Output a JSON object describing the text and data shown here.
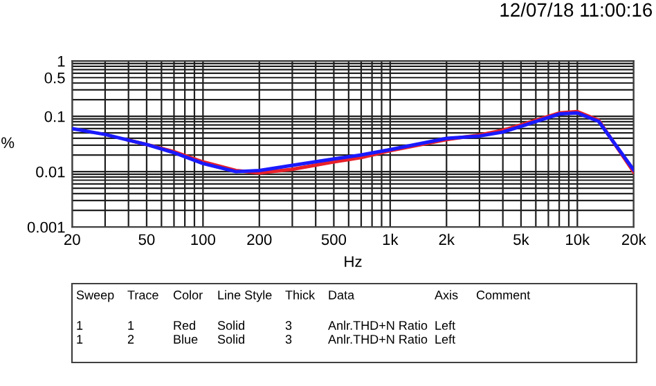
{
  "chart_data": {
    "type": "line",
    "xlabel": "Hz",
    "ylabel": "%",
    "log": "xy",
    "x": [
      20,
      30,
      40,
      50,
      70,
      100,
      150,
      200,
      300,
      500,
      700,
      1000,
      2000,
      3000,
      4000,
      5000,
      8000,
      10000,
      13000,
      20000
    ],
    "series": [
      {
        "color": "#e8202a",
        "values": [
          null,
          null,
          0.037,
          0.031,
          0.023,
          0.015,
          0.0105,
          0.0095,
          0.011,
          0.015,
          0.018,
          0.024,
          0.038,
          0.046,
          0.056,
          0.07,
          0.115,
          0.122,
          0.085,
          0.0098
        ]
      },
      {
        "color": "#1a1aff",
        "values": [
          0.06,
          0.047,
          0.037,
          0.031,
          0.022,
          0.014,
          0.01,
          0.0105,
          0.013,
          0.017,
          0.02,
          0.025,
          0.04,
          0.044,
          0.052,
          0.066,
          0.11,
          0.115,
          0.081,
          0.0107
        ]
      }
    ],
    "xlim": [
      20,
      20000
    ],
    "ylim": [
      0.001,
      1
    ],
    "xticks": [
      20,
      50,
      100,
      200,
      500,
      {
        "value": 1000,
        "label": "1k"
      },
      {
        "value": 2000,
        "label": "2k"
      },
      {
        "value": 5000,
        "label": "5k"
      },
      {
        "value": 10000,
        "label": "10k"
      },
      {
        "value": 20000,
        "label": "20k"
      }
    ],
    "yticks": [
      0.001,
      0.01,
      0.1,
      0.5,
      1
    ],
    "grid": true,
    "marker": "none",
    "line_style": "solid",
    "legend": false,
    "annotations": [
      "12/07/18 11:00:16",
      "Sweep",
      "Trace",
      "Color",
      "Line Style",
      "Thick",
      "Data",
      "Axis",
      "Comment",
      "1",
      "1",
      "Red",
      "Solid",
      "3",
      "Anlr.THD+N Ratio",
      "Left",
      "1",
      "2",
      "Blue",
      "Solid",
      "3",
      "Anlr.THD+N Ratio",
      "Left"
    ]
  }
}
